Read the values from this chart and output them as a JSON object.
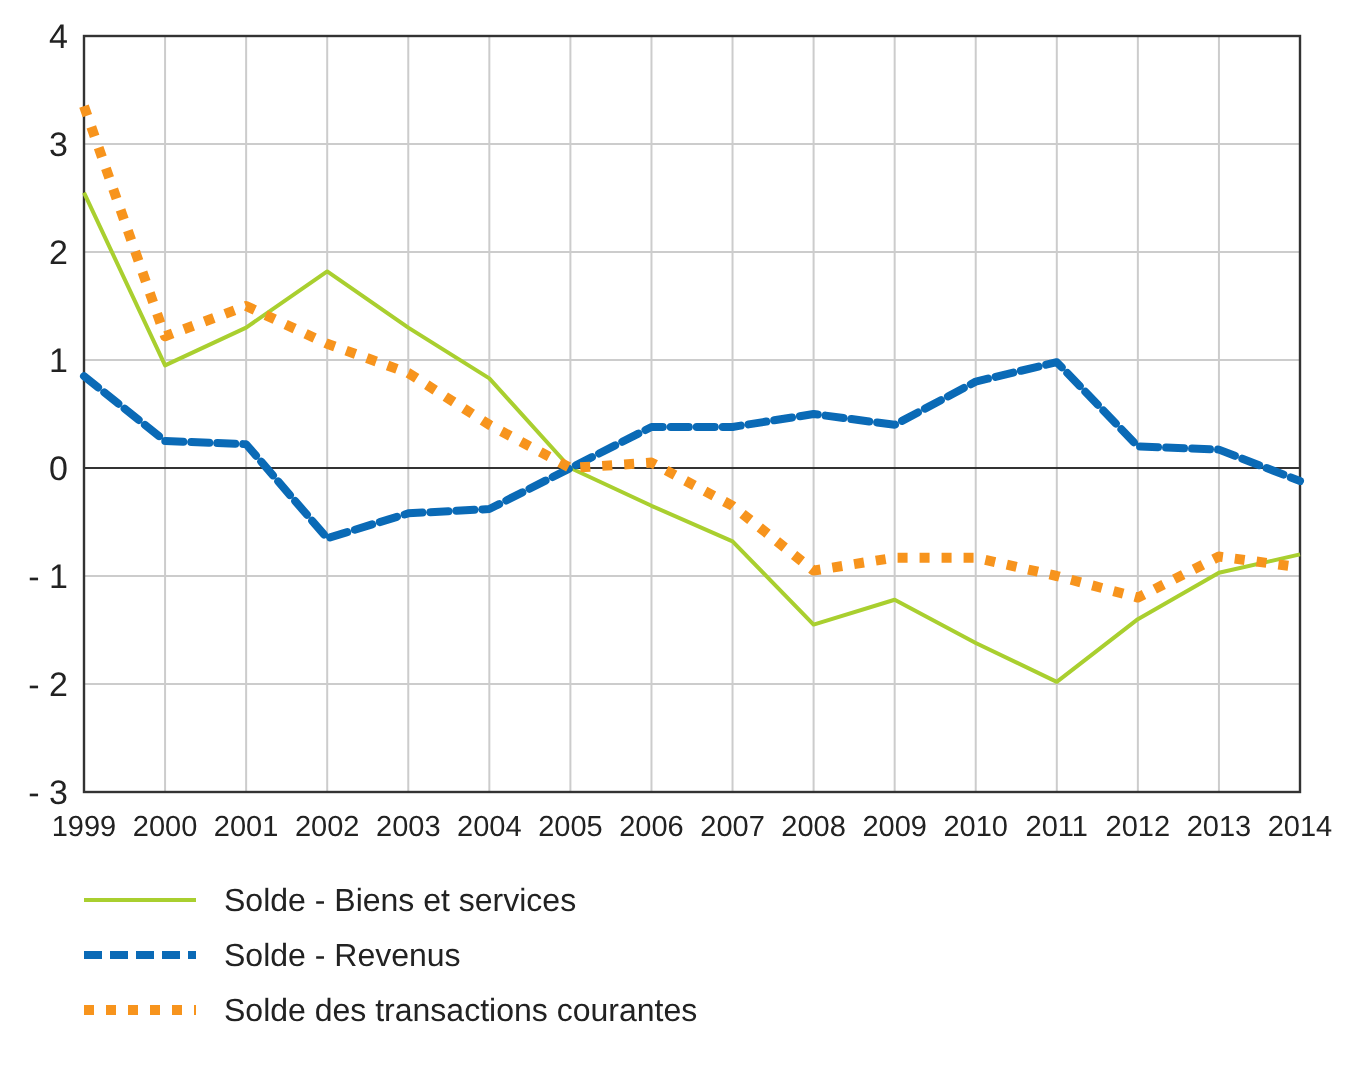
{
  "chart_data": {
    "type": "line",
    "x": [
      1999,
      2000,
      2001,
      2002,
      2003,
      2004,
      2005,
      2006,
      2007,
      2008,
      2009,
      2010,
      2011,
      2012,
      2013,
      2014
    ],
    "xlim": [
      1999,
      2014
    ],
    "xticks": [
      1999,
      2000,
      2001,
      2002,
      2003,
      2004,
      2005,
      2006,
      2007,
      2008,
      2009,
      2010,
      2011,
      2012,
      2013,
      2014
    ],
    "ylim": [
      -3,
      4
    ],
    "yticks": [
      {
        "value": -3,
        "label": "- 3"
      },
      {
        "value": -2,
        "label": "- 2"
      },
      {
        "value": -1,
        "label": "- 1"
      },
      0,
      1,
      2,
      3,
      4
    ],
    "grid": true,
    "legend": "bottom",
    "ref_lines": [
      {
        "axis": "y",
        "value": 0,
        "color": "#333333"
      }
    ],
    "series": [
      {
        "name": "Solde - Biens et services",
        "color": "#a9cf2f",
        "line_style": "solid",
        "values": [
          2.55,
          0.95,
          1.3,
          1.82,
          1.3,
          0.83,
          0,
          -0.35,
          -0.68,
          -1.45,
          -1.22,
          -1.62,
          -1.98,
          -1.4,
          -0.97,
          -0.8
        ]
      },
      {
        "name": "Solde - Revenus",
        "color": "#0a6ab6",
        "line_style": "dashed",
        "values": [
          0.85,
          0.25,
          0.22,
          -0.65,
          -0.42,
          -0.38,
          0,
          0.38,
          0.38,
          0.5,
          0.4,
          0.8,
          0.98,
          0.2,
          0.17,
          -0.12
        ]
      },
      {
        "name": "Solde des transactions courantes",
        "color": "#f7941d",
        "line_style": "dotted",
        "values": [
          3.35,
          1.22,
          1.5,
          1.15,
          0.88,
          0.4,
          0,
          0.05,
          -0.35,
          -0.95,
          -0.83,
          -0.83,
          -1.0,
          -1.2,
          -0.82,
          -0.92
        ]
      }
    ]
  }
}
